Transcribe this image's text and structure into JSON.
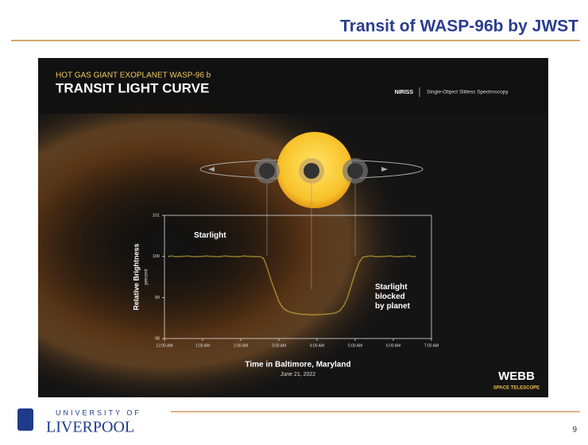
{
  "slide": {
    "title": "Transit of WASP-96b by JWST",
    "page_number": 9,
    "logo_top": "UNIVERSITY OF",
    "logo_bottom": "LIVERPOOL"
  },
  "header": {
    "kicker": "HOT GAS GIANT EXOPLANET WASP-96 b",
    "heading": "TRANSIT LIGHT CURVE",
    "instrument": "NIRISS",
    "mode": "Single-Object Slitless Spectroscopy"
  },
  "branding": {
    "name": "WEBB",
    "sub": "SPACE TELESCOPE"
  },
  "chart_data": {
    "type": "line",
    "ylabel": "Relative Brightness",
    "ylabel_units": "percent",
    "xlabel": "Time in Baltimore, Maryland",
    "subtitle": "June 21, 2022",
    "annotations": [
      "Starlight",
      "Starlight blocked by planet"
    ],
    "x": [
      0.1,
      0.2,
      0.3,
      0.4,
      0.5,
      0.6,
      0.7,
      0.8,
      0.9,
      1.0,
      1.1,
      1.2,
      1.3,
      1.4,
      1.5,
      1.6,
      1.7,
      1.8,
      1.9,
      2.0,
      2.1,
      2.2,
      2.3,
      2.4,
      2.5,
      2.6,
      2.7,
      2.8,
      2.9,
      3.0,
      3.1,
      3.2,
      3.3,
      3.4,
      3.5,
      3.6,
      3.7,
      3.8,
      3.9,
      4.0,
      4.1,
      4.2,
      4.3,
      4.4,
      4.5,
      4.6,
      4.7,
      4.8,
      4.9,
      5.0,
      5.1,
      5.2,
      5.3,
      5.4,
      5.5,
      5.6,
      5.7,
      5.8,
      5.9,
      6.0,
      6.1,
      6.2,
      6.3,
      6.4,
      6.5,
      6.6
    ],
    "series": [
      {
        "name": "Starlight",
        "color": "#f2d24b",
        "values": [
          100,
          100.01,
          99.99,
          100,
          100,
          100.01,
          100,
          99.99,
          100,
          100,
          100.01,
          100,
          100,
          99.99,
          100,
          100.01,
          100,
          100,
          99.99,
          100,
          100.01,
          100,
          100,
          99.99,
          100,
          99.95,
          99.7,
          99.4,
          99.15,
          98.9,
          98.75,
          98.68,
          98.64,
          98.62,
          98.6,
          98.59,
          98.59,
          98.58,
          98.58,
          98.58,
          98.59,
          98.59,
          98.6,
          98.61,
          98.63,
          98.68,
          98.8,
          99.0,
          99.3,
          99.6,
          99.85,
          99.98,
          100,
          100.01,
          100,
          99.99,
          100,
          100,
          100.01,
          100,
          99.99,
          100,
          100,
          100.01,
          100,
          100
        ]
      }
    ],
    "xlim": [
      0,
      7
    ],
    "xticks": [
      {
        "value": 0,
        "label": "12:00 AM"
      },
      {
        "value": 1,
        "label": "1:00 AM"
      },
      {
        "value": 2,
        "label": "2:00 AM"
      },
      {
        "value": 3,
        "label": "3:00 AM"
      },
      {
        "value": 4,
        "label": "4:00 AM"
      },
      {
        "value": 5,
        "label": "5:00 AM"
      },
      {
        "value": 6,
        "label": "6:00 AM"
      },
      {
        "value": 7,
        "label": "7:00 AM"
      }
    ],
    "ylim": [
      98,
      101
    ],
    "yticks": [
      98,
      99,
      100,
      101
    ],
    "grid": false
  }
}
